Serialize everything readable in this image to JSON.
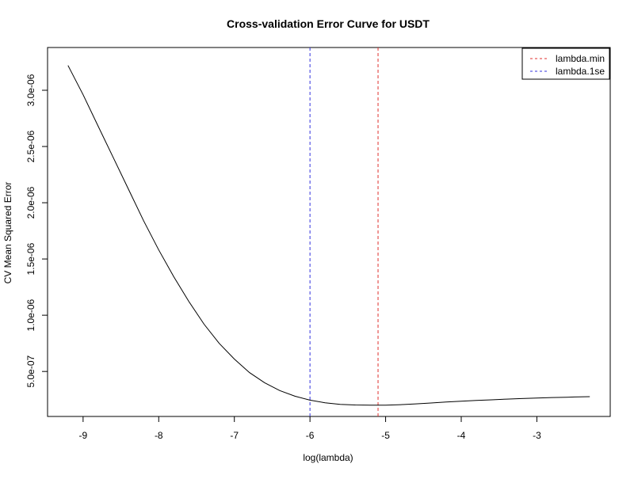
{
  "chart_data": {
    "type": "line",
    "title": "Cross-validation Error Curve for USDT",
    "xlabel": "log(lambda)",
    "ylabel": "CV Mean Squared Error",
    "xlim": [
      -9.47,
      -2.03
    ],
    "ylim": [
      1e-07,
      3.38e-06
    ],
    "x_ticks": [
      -9,
      -8,
      -7,
      -6,
      -5,
      -4,
      -3
    ],
    "x_tick_labels": [
      "-9",
      "-8",
      "-7",
      "-6",
      "-5",
      "-4",
      "-3"
    ],
    "y_ticks": [
      5e-07,
      1e-06,
      1.5e-06,
      2e-06,
      2.5e-06,
      3e-06
    ],
    "y_tick_labels": [
      "5.0e-07",
      "1.0e-06",
      "1.5e-06",
      "2.0e-06",
      "2.5e-06",
      "3.0e-06"
    ],
    "grid": false,
    "series": [
      {
        "color": "#000000",
        "x": [
          -9.2,
          -9.0,
          -8.8,
          -8.6,
          -8.4,
          -8.2,
          -8.0,
          -7.8,
          -7.6,
          -7.4,
          -7.2,
          -7.0,
          -6.8,
          -6.6,
          -6.4,
          -6.2,
          -6.0,
          -5.8,
          -5.6,
          -5.4,
          -5.2,
          -5.0,
          -4.8,
          -4.6,
          -4.4,
          -4.2,
          -4.0,
          -3.8,
          -3.6,
          -3.4,
          -3.2,
          -3.0,
          -2.8,
          -2.6,
          -2.5,
          -2.3
        ],
        "y": [
          3.22e-06,
          2.96e-06,
          2.68e-06,
          2.4e-06,
          2.12e-06,
          1.84e-06,
          1.58e-06,
          1.34e-06,
          1.12e-06,
          9.2e-07,
          7.5e-07,
          6.1e-07,
          4.9e-07,
          4e-07,
          3.3e-07,
          2.8e-07,
          2.45e-07,
          2.22e-07,
          2.08e-07,
          2.02e-07,
          2e-07,
          2.01e-07,
          2.05e-07,
          2.12e-07,
          2.2e-07,
          2.28e-07,
          2.35e-07,
          2.42e-07,
          2.48e-07,
          2.54e-07,
          2.59e-07,
          2.64e-07,
          2.68e-07,
          2.71e-07,
          2.73e-07,
          2.76e-07
        ]
      }
    ],
    "vlines": [
      {
        "name": "lambda.min",
        "x": -5.1,
        "color": "#e0302f",
        "dash": "dashed"
      },
      {
        "name": "lambda.1se",
        "x": -6.0,
        "color": "#3333dd",
        "dash": "dashed"
      }
    ],
    "legend": {
      "position": "top-right",
      "entries": [
        "lambda.min",
        "lambda.1se"
      ]
    }
  }
}
